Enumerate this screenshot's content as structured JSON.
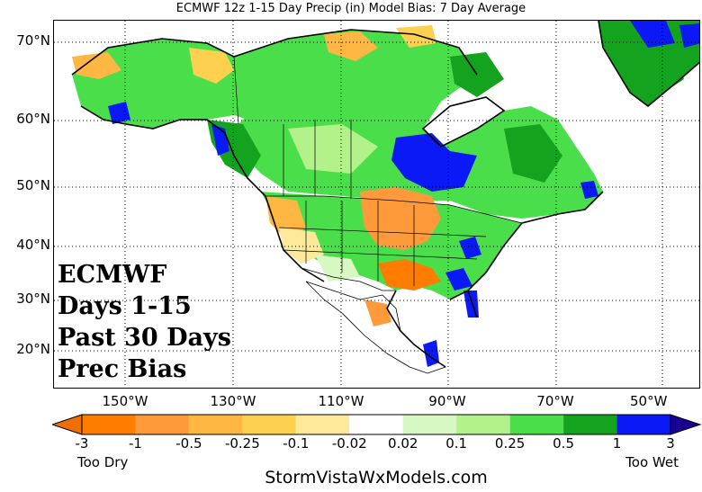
{
  "title": "ECMWF 12z 1-15 Day Precip (in) Model Bias: 7 Day Average",
  "lat_labels": [
    "70°N",
    "60°N",
    "50°N",
    "40°N",
    "30°N",
    "20°N"
  ],
  "lon_labels": [
    "150°W",
    "130°W",
    "110°W",
    "90°W",
    "70°W",
    "50°W"
  ],
  "overlay": {
    "line1": "ECMWF",
    "line2": "Days 1-15",
    "line3": "Past 30 Days",
    "line4": "Prec Bias"
  },
  "colorbar": {
    "ticks": [
      "-3",
      "-1",
      "-0.5",
      "-0.25",
      "-0.1",
      "-0.02",
      "0.02",
      "0.1",
      "0.25",
      "0.5",
      "1",
      "3"
    ],
    "colors": [
      "#fe7c00",
      "#fe9a3a",
      "#feb743",
      "#fed050",
      "#fde99a",
      "#ffffff",
      "#d7f7c3",
      "#b3f28a",
      "#4bde4b",
      "#14a31e",
      "#0a19f5"
    ],
    "low_label": "Too Dry",
    "high_label": "Too Wet"
  },
  "credit": "StormVistaWxModels.com"
}
